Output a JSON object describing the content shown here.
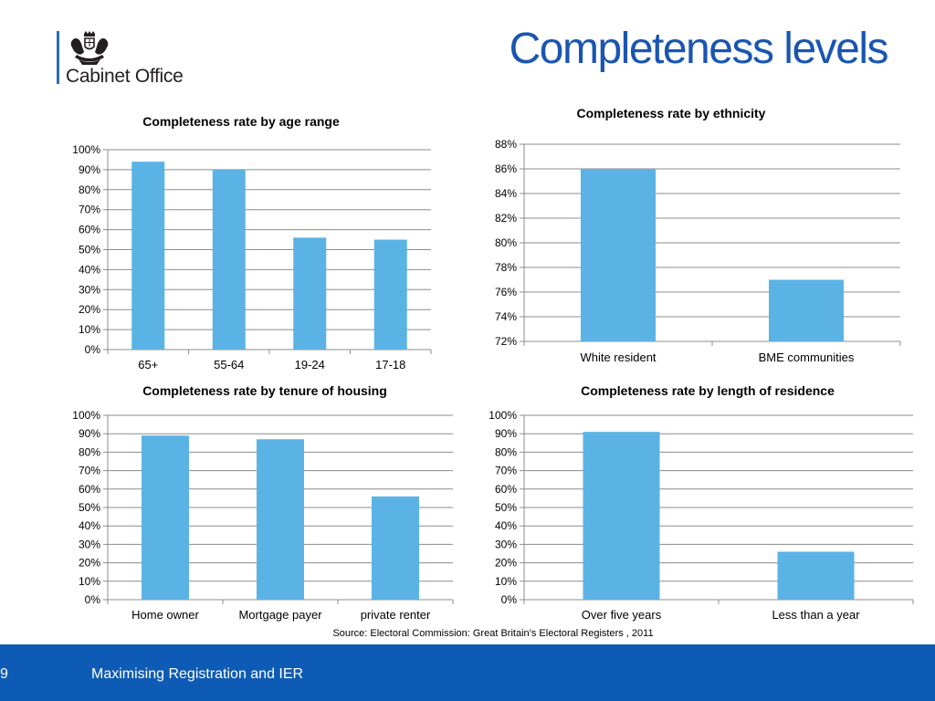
{
  "header": {
    "title": "Completeness levels",
    "org_name": "Cabinet Office"
  },
  "footer": {
    "page_number": "9",
    "text": "Maximising Registration and IER"
  },
  "source_note": "Source: Electoral Commission: Great Britain’s Electoral Registers , 2011",
  "colors": {
    "bar": "#5ab3e4",
    "title_blue": "#1a56b0",
    "footer_blue": "#0e5bb5",
    "grid": "#8c8c8c"
  },
  "chart_data": [
    {
      "type": "bar",
      "title": "Completeness rate by age range",
      "categories": [
        "65+",
        "55-64",
        "19-24",
        "17-18"
      ],
      "values": [
        94,
        90,
        56,
        55
      ],
      "ylim": [
        0,
        100
      ],
      "ytick_labels": [
        "0%",
        "10%",
        "20%",
        "30%",
        "40%",
        "50%",
        "60%",
        "70%",
        "80%",
        "90%",
        "100%"
      ],
      "grid": true
    },
    {
      "type": "bar",
      "title": "Completeness rate by ethnicity",
      "categories": [
        "White resident",
        "BME communities"
      ],
      "values": [
        86,
        77
      ],
      "ylim": [
        72,
        88
      ],
      "ytick_labels": [
        "72%",
        "74%",
        "76%",
        "78%",
        "80%",
        "82%",
        "84%",
        "86%",
        "88%"
      ],
      "grid": true
    },
    {
      "type": "bar",
      "title": "Completeness rate by tenure of housing",
      "categories": [
        "Home owner",
        "Mortgage payer",
        "private renter"
      ],
      "values": [
        89,
        87,
        56
      ],
      "ylim": [
        0,
        100
      ],
      "ytick_labels": [
        "0%",
        "10%",
        "20%",
        "30%",
        "40%",
        "50%",
        "60%",
        "70%",
        "80%",
        "90%",
        "100%"
      ],
      "grid": true
    },
    {
      "type": "bar",
      "title": "Completeness rate by length of residence",
      "categories": [
        "Over five years",
        "Less than a year"
      ],
      "values": [
        91,
        26
      ],
      "ylim": [
        0,
        100
      ],
      "ytick_labels": [
        "0%",
        "10%",
        "20%",
        "30%",
        "40%",
        "50%",
        "60%",
        "70%",
        "80%",
        "90%",
        "100%"
      ],
      "grid": true
    }
  ]
}
